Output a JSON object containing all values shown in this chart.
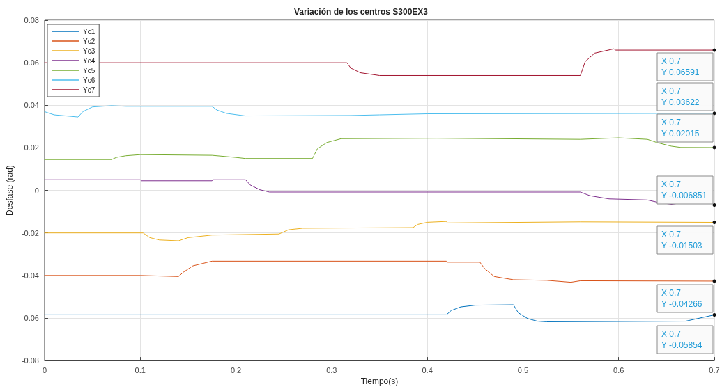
{
  "chart_data": {
    "type": "line",
    "title": "Variación de los centros S300EX3",
    "xlabel": "Tiempo(s)",
    "ylabel": "Desfase (rad)",
    "xlim": [
      0,
      0.7
    ],
    "xticks": [
      0,
      0.1,
      0.2,
      0.3,
      0.4,
      0.5,
      0.6,
      0.7
    ],
    "ylim": [
      -0.08,
      0.08
    ],
    "yticks": [
      -0.08,
      -0.06,
      -0.04,
      -0.02,
      0,
      0.02,
      0.04,
      0.06,
      0.08
    ],
    "grid": true,
    "legend": "top left",
    "marker": "none",
    "line_style": "solid",
    "series": [
      {
        "name": "Yc1",
        "color": "#0072bd",
        "x": [
          0,
          0.42,
          0.425,
          0.435,
          0.45,
          0.49,
          0.495,
          0.505,
          0.515,
          0.525,
          0.67,
          0.7
        ],
        "values": [
          -0.0585,
          -0.0585,
          -0.0565,
          -0.0548,
          -0.054,
          -0.0538,
          -0.0575,
          -0.0603,
          -0.0615,
          -0.0618,
          -0.0615,
          -0.05854
        ]
      },
      {
        "name": "Yc2",
        "color": "#d95319",
        "x": [
          0,
          0.1,
          0.14,
          0.145,
          0.155,
          0.175,
          0.42,
          0.421,
          0.455,
          0.46,
          0.47,
          0.49,
          0.525,
          0.55,
          0.56,
          0.7
        ],
        "values": [
          -0.04,
          -0.04,
          -0.0405,
          -0.0385,
          -0.0355,
          -0.0333,
          -0.0333,
          -0.0338,
          -0.0338,
          -0.0368,
          -0.0405,
          -0.042,
          -0.0423,
          -0.0432,
          -0.0425,
          -0.04266
        ]
      },
      {
        "name": "Yc3",
        "color": "#edb120",
        "x": [
          0,
          0.103,
          0.11,
          0.12,
          0.14,
          0.15,
          0.175,
          0.245,
          0.255,
          0.27,
          0.385,
          0.39,
          0.4,
          0.42,
          0.421,
          0.56,
          0.7
        ],
        "values": [
          -0.02,
          -0.02,
          -0.0222,
          -0.0233,
          -0.0237,
          -0.0222,
          -0.021,
          -0.0205,
          -0.0185,
          -0.0178,
          -0.0175,
          -0.016,
          -0.015,
          -0.0146,
          -0.0153,
          -0.0148,
          -0.01503
        ]
      },
      {
        "name": "Yc4",
        "color": "#7e2f8e",
        "x": [
          0,
          0.1,
          0.101,
          0.175,
          0.176,
          0.21,
          0.215,
          0.225,
          0.235,
          0.56,
          0.57,
          0.59,
          0.63,
          0.64,
          0.66,
          0.7
        ],
        "values": [
          0.005,
          0.005,
          0.0045,
          0.0045,
          0.005,
          0.005,
          0.0025,
          0.0003,
          -0.0008,
          -0.0008,
          -0.0025,
          -0.004,
          -0.0045,
          -0.0055,
          -0.00685,
          -0.006851
        ]
      },
      {
        "name": "Yc5",
        "color": "#77ac30",
        "x": [
          0,
          0.07,
          0.075,
          0.085,
          0.1,
          0.175,
          0.2,
          0.21,
          0.28,
          0.285,
          0.295,
          0.31,
          0.41,
          0.56,
          0.6,
          0.63,
          0.64,
          0.655,
          0.665,
          0.7
        ],
        "values": [
          0.0145,
          0.0145,
          0.0155,
          0.0163,
          0.0168,
          0.0165,
          0.0155,
          0.015,
          0.015,
          0.0195,
          0.0225,
          0.0243,
          0.0245,
          0.024,
          0.0247,
          0.024,
          0.0225,
          0.0208,
          0.0202,
          0.02015
        ]
      },
      {
        "name": "Yc6",
        "color": "#4dbeee",
        "x": [
          0,
          0.01,
          0.035,
          0.04,
          0.05,
          0.07,
          0.085,
          0.175,
          0.18,
          0.19,
          0.21,
          0.32,
          0.35,
          0.4,
          0.7
        ],
        "values": [
          0.037,
          0.0355,
          0.0345,
          0.037,
          0.0392,
          0.0398,
          0.0395,
          0.0395,
          0.0378,
          0.0362,
          0.035,
          0.0352,
          0.0355,
          0.036,
          0.03622
        ]
      },
      {
        "name": "Yc7",
        "color": "#a2142f",
        "x": [
          0,
          0.316,
          0.32,
          0.33,
          0.35,
          0.56,
          0.565,
          0.575,
          0.595,
          0.597,
          0.7
        ],
        "values": [
          0.06,
          0.06,
          0.0575,
          0.0553,
          0.054,
          0.054,
          0.0605,
          0.0645,
          0.0665,
          0.06591,
          0.06591
        ]
      }
    ],
    "annotations": [
      "X 0.7\nY 0.06591",
      "X 0.7\nY 0.03622",
      "X 0.7\nY 0.02015",
      "X 0.7\nY -0.006851",
      "X 0.7\nY -0.01503",
      "X 0.7\nY -0.04266",
      "X 0.7\nY -0.05854"
    ]
  }
}
